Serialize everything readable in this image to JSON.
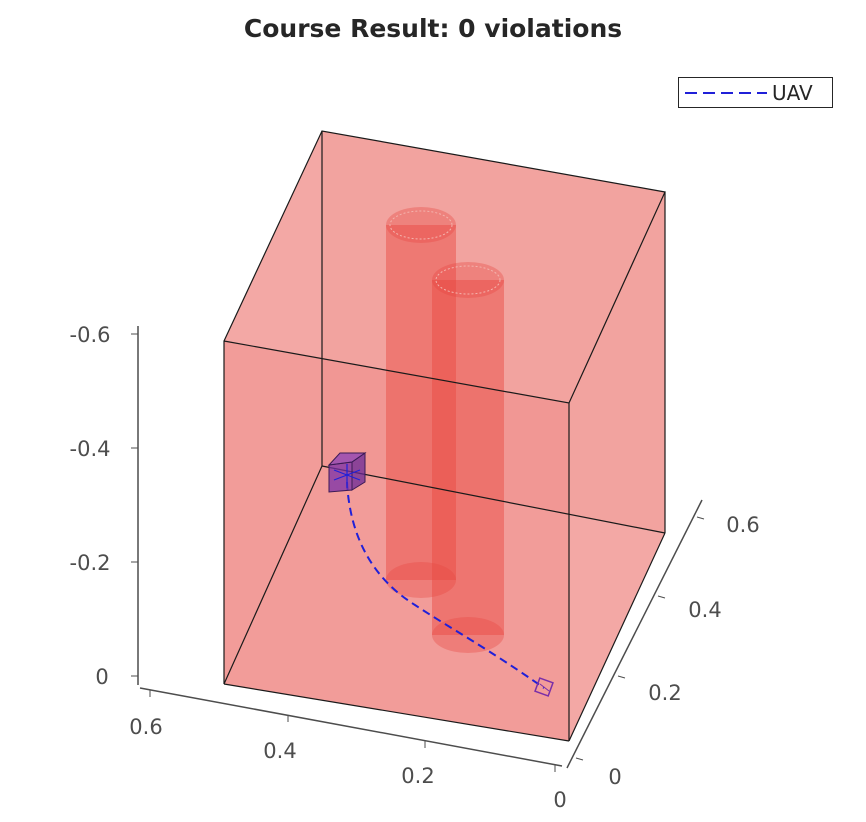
{
  "chart_data": {
    "type": "3d-plot",
    "title": "Course Result: 0 violations",
    "legend": {
      "placement": "top-right",
      "entries": [
        "UAV"
      ]
    },
    "axes": {
      "x": {
        "ticks": [
          "0.6",
          "0.4",
          "0.2",
          "0"
        ],
        "range": [
          0,
          0.6
        ]
      },
      "y": {
        "ticks": [
          "0",
          "0.2",
          "0.4",
          "0.6"
        ],
        "range": [
          0,
          0.6
        ]
      },
      "z": {
        "ticks": [
          "0",
          "-0.2",
          "-0.4",
          "-0.6"
        ],
        "range": [
          -0.6,
          0
        ],
        "reversed": true
      }
    },
    "objects": [
      {
        "name": "boundary-box",
        "kind": "box",
        "color": "#e8564f"
      },
      {
        "name": "obstacle-1",
        "kind": "cylinder",
        "color": "#e8463f"
      },
      {
        "name": "obstacle-2",
        "kind": "cylinder",
        "color": "#e8463f"
      },
      {
        "name": "UAV",
        "kind": "trajectory",
        "style": "dashed",
        "color": "#2020d8"
      },
      {
        "name": "uav-start",
        "kind": "cube-marker",
        "color": "#7a2fa8"
      }
    ]
  },
  "colors": {
    "box_fill": "#e8564f",
    "cylinder_fill": "#e8463f",
    "path": "#2020d8",
    "uav": "#7a2fa8",
    "axis": "#4d4d4d"
  }
}
